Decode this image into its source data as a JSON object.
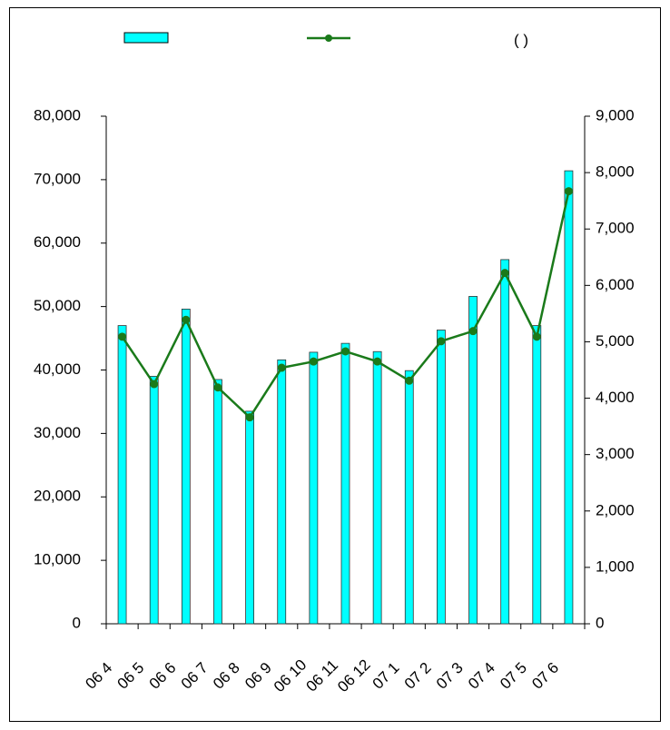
{
  "chart_data": {
    "type": "bar_line",
    "annotation": "(      )",
    "categories": [
      "06  4",
      "06  5",
      "06  6",
      "06  7",
      "06  8",
      "06  9",
      "06  10",
      "06  11",
      "06  12",
      "07  1",
      "07  2",
      "07  3",
      "07  4",
      "07  5",
      "07  6"
    ],
    "series": [
      {
        "type": "bar",
        "color": "#00ffff",
        "values": [
          47000,
          39000,
          49600,
          38500,
          33500,
          41600,
          42800,
          44200,
          42900,
          39900,
          46300,
          51600,
          57400,
          47000,
          71400
        ]
      },
      {
        "type": "line",
        "color": "#1a7a1a",
        "axis": "y2",
        "values": [
          5090,
          4250,
          5390,
          4190,
          3660,
          4540,
          4650,
          4830,
          4650,
          4310,
          5010,
          5190,
          6220,
          5090,
          7670
        ]
      }
    ],
    "ylim": [
      0,
      80000
    ],
    "yticks": [
      0,
      {
        "value": 10000,
        "label": "10,000"
      },
      {
        "value": 20000,
        "label": "20,000"
      },
      {
        "value": 30000,
        "label": "30,000"
      },
      {
        "value": 40000,
        "label": "40,000"
      },
      {
        "value": 50000,
        "label": "50,000"
      },
      {
        "value": 60000,
        "label": "60,000"
      },
      {
        "value": 70000,
        "label": "70,000"
      },
      {
        "value": 80000,
        "label": "80,000"
      }
    ],
    "y2lim": [
      0,
      9000
    ],
    "y2ticks": [
      0,
      {
        "value": 1000,
        "label": "1,000"
      },
      {
        "value": 2000,
        "label": "2,000"
      },
      {
        "value": 3000,
        "label": "3,000"
      },
      {
        "value": 4000,
        "label": "4,000"
      },
      {
        "value": 5000,
        "label": "5,000"
      },
      {
        "value": 6000,
        "label": "6,000"
      },
      {
        "value": 7000,
        "label": "7,000"
      },
      {
        "value": 8000,
        "label": "8,000"
      },
      {
        "value": 9000,
        "label": "9,000"
      }
    ]
  }
}
